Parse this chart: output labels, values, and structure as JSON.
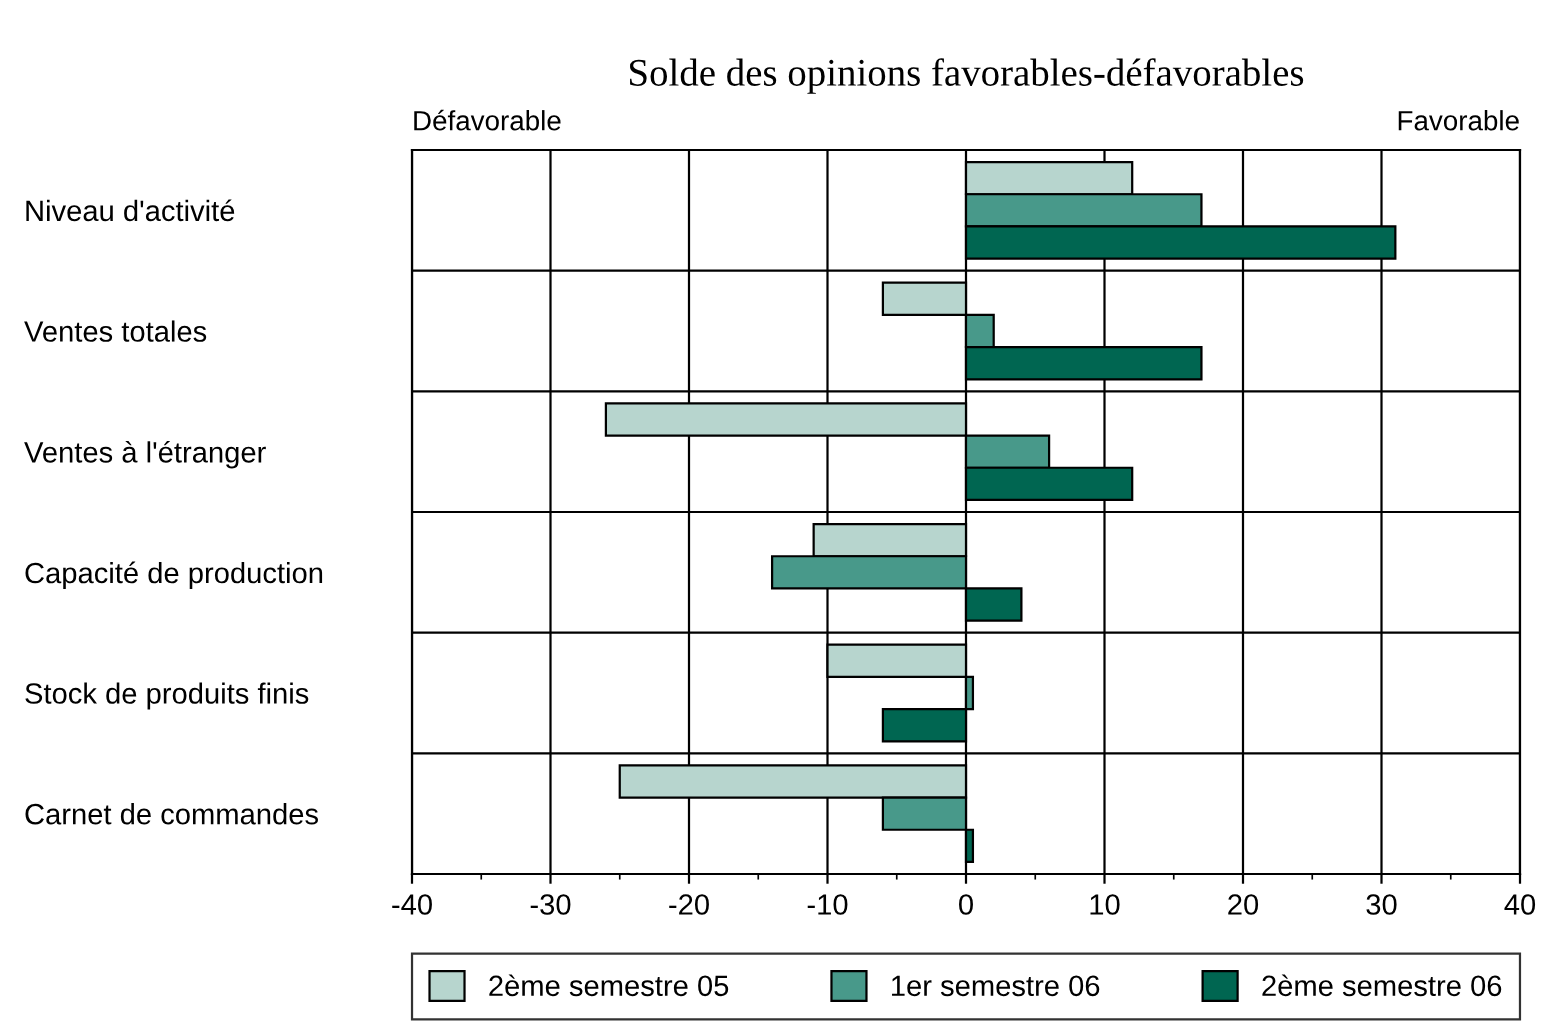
{
  "chart_data": {
    "type": "bar",
    "orientation": "horizontal",
    "title": "Solde des opinions favorables-défavorables",
    "annotations": [
      "Défavorable",
      "Favorable"
    ],
    "categories": [
      "Niveau d'activité",
      "Ventes totales",
      "Ventes à l'étranger",
      "Capacité de production",
      "Stock de produits finis",
      "Carnet de commandes"
    ],
    "series": [
      {
        "name": "2ème semestre 05",
        "color": "#b7d5ce",
        "values": [
          12,
          -6,
          -26,
          -11,
          -10,
          -25
        ]
      },
      {
        "name": "1er semestre 06",
        "color": "#48998a",
        "values": [
          17,
          2,
          6,
          -14,
          0.5,
          -6
        ]
      },
      {
        "name": "2ème semestre 06",
        "color": "#006651",
        "values": [
          31,
          17,
          12,
          4,
          -6,
          0.5
        ]
      }
    ],
    "xlim": [
      -40,
      40
    ],
    "xticks": [
      -40,
      -30,
      -20,
      -10,
      0,
      10,
      20,
      30,
      40
    ],
    "grid": true,
    "legend": "bottom"
  }
}
